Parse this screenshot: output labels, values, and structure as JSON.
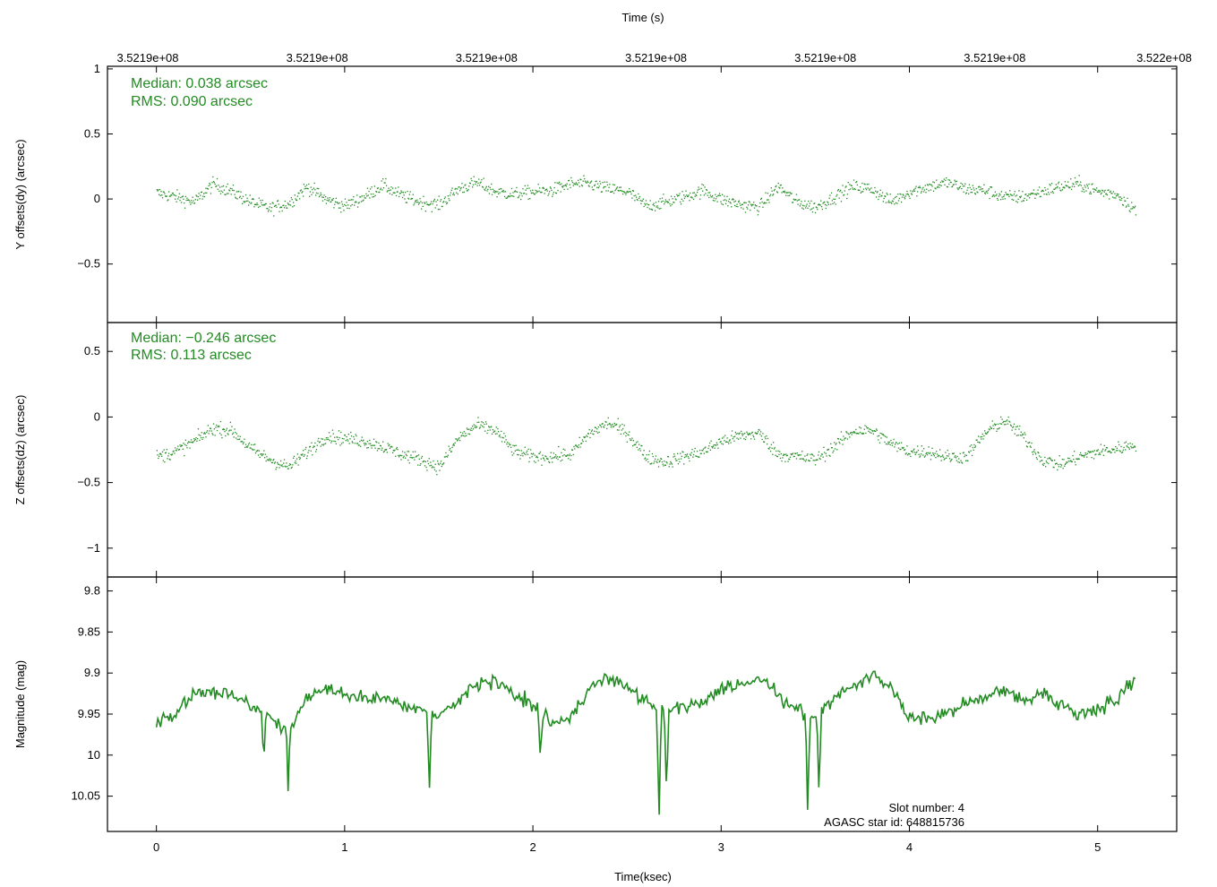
{
  "chart_data": {
    "type": "scatter",
    "accent_color": "#228b22",
    "shared_x": {
      "xlabel": "Time(ksec)",
      "xlim": [
        -0.26,
        5.42
      ],
      "ticks": [
        0,
        1,
        2,
        3,
        4,
        5
      ],
      "tick_labels": [
        "0",
        "1",
        "2",
        "3",
        "4",
        "5"
      ],
      "top_axis_title": "Time (s)",
      "top_tick_labels": [
        "3.5219e+08",
        "3.5219e+08",
        "3.5219e+08",
        "3.5219e+08",
        "3.5219e+08",
        "3.5219e+08",
        "3.522e+08"
      ]
    },
    "panels": [
      {
        "type": "scatter",
        "ylabel": "Y offsets(dy) (arcsec)",
        "ylim": [
          -0.95,
          1.02
        ],
        "yticks": [
          1,
          0.5,
          0,
          -0.5
        ],
        "ytick_labels": [
          "1",
          "0.5",
          "0",
          "−0.5"
        ],
        "annotations": [
          "Median: 0.038 arcsec",
          "RMS: 0.090 arcsec"
        ],
        "x": [
          0.0,
          0.1,
          0.2,
          0.3,
          0.4,
          0.5,
          0.6,
          0.7,
          0.8,
          0.9,
          1.0,
          1.1,
          1.2,
          1.3,
          1.4,
          1.5,
          1.6,
          1.7,
          1.8,
          1.9,
          2.0,
          2.1,
          2.2,
          2.3,
          2.4,
          2.5,
          2.6,
          2.7,
          2.8,
          2.9,
          3.0,
          3.1,
          3.2,
          3.3,
          3.4,
          3.5,
          3.6,
          3.7,
          3.8,
          3.9,
          4.0,
          4.1,
          4.2,
          4.3,
          4.4,
          4.5,
          4.6,
          4.7,
          4.8,
          4.9,
          5.0,
          5.1,
          5.2
        ],
        "y": [
          0.05,
          0.02,
          -0.02,
          0.12,
          0.06,
          -0.02,
          -0.07,
          -0.03,
          0.1,
          0.0,
          -0.05,
          0.02,
          0.11,
          0.03,
          -0.02,
          -0.04,
          0.08,
          0.13,
          0.06,
          0.04,
          0.06,
          0.07,
          0.12,
          0.12,
          0.08,
          0.06,
          -0.05,
          -0.02,
          0.02,
          0.07,
          0.0,
          -0.04,
          -0.06,
          0.1,
          -0.02,
          -0.06,
          0.02,
          0.1,
          0.08,
          -0.02,
          0.06,
          0.1,
          0.13,
          0.08,
          0.07,
          0.02,
          0.02,
          0.06,
          0.1,
          0.12,
          0.06,
          0.04,
          -0.08
        ],
        "point_count": 1400
      },
      {
        "type": "scatter",
        "ylabel": "Z offsets(dz) (arcsec)",
        "ylim": [
          -1.22,
          0.72
        ],
        "yticks": [
          0.5,
          0,
          -0.5,
          -1
        ],
        "ytick_labels": [
          "0.5",
          "0",
          "−0.5",
          "−1"
        ],
        "annotations": [
          "Median: −0.246 arcsec",
          "RMS: 0.113 arcsec"
        ],
        "x": [
          0.0,
          0.1,
          0.2,
          0.3,
          0.4,
          0.5,
          0.6,
          0.7,
          0.8,
          0.9,
          1.0,
          1.1,
          1.2,
          1.3,
          1.4,
          1.5,
          1.6,
          1.7,
          1.8,
          1.9,
          2.0,
          2.1,
          2.2,
          2.3,
          2.4,
          2.5,
          2.6,
          2.7,
          2.8,
          2.9,
          3.0,
          3.1,
          3.2,
          3.3,
          3.4,
          3.5,
          3.6,
          3.7,
          3.8,
          3.9,
          4.0,
          4.1,
          4.2,
          4.3,
          4.4,
          4.5,
          4.6,
          4.7,
          4.8,
          4.9,
          5.0,
          5.1,
          5.2
        ],
        "y": [
          -0.3,
          -0.26,
          -0.18,
          -0.08,
          -0.1,
          -0.24,
          -0.32,
          -0.38,
          -0.26,
          -0.14,
          -0.16,
          -0.18,
          -0.22,
          -0.28,
          -0.32,
          -0.38,
          -0.16,
          -0.06,
          -0.1,
          -0.26,
          -0.3,
          -0.3,
          -0.28,
          -0.12,
          -0.04,
          -0.12,
          -0.3,
          -0.34,
          -0.3,
          -0.26,
          -0.18,
          -0.14,
          -0.12,
          -0.28,
          -0.3,
          -0.32,
          -0.22,
          -0.1,
          -0.1,
          -0.2,
          -0.26,
          -0.26,
          -0.3,
          -0.3,
          -0.12,
          -0.02,
          -0.14,
          -0.32,
          -0.36,
          -0.3,
          -0.26,
          -0.24,
          -0.2
        ],
        "point_count": 1400
      },
      {
        "type": "line",
        "ylabel": "Magnitude (mag)",
        "ylim": [
          9.783,
          10.093
        ],
        "inverted": true,
        "yticks": [
          9.8,
          9.85,
          9.9,
          9.95,
          10,
          10.05
        ],
        "ytick_labels": [
          "9.8",
          "9.85",
          "9.9",
          "9.95",
          "10",
          "10.05"
        ],
        "annotations_bottom_right": [
          "Slot number: 4",
          "AGASC star id: 648815736"
        ],
        "x": [
          0.0,
          0.1,
          0.2,
          0.3,
          0.4,
          0.5,
          0.6,
          0.7,
          0.8,
          0.9,
          1.0,
          1.1,
          1.2,
          1.3,
          1.4,
          1.5,
          1.6,
          1.7,
          1.8,
          1.9,
          2.0,
          2.1,
          2.2,
          2.3,
          2.4,
          2.5,
          2.6,
          2.7,
          2.8,
          2.9,
          3.0,
          3.1,
          3.2,
          3.3,
          3.4,
          3.5,
          3.6,
          3.7,
          3.8,
          3.9,
          4.0,
          4.1,
          4.2,
          4.3,
          4.4,
          4.5,
          4.6,
          4.7,
          4.8,
          4.9,
          5.0,
          5.1,
          5.2
        ],
        "y": [
          9.96,
          9.95,
          9.925,
          9.925,
          9.925,
          9.94,
          9.955,
          9.97,
          9.93,
          9.92,
          9.925,
          9.93,
          9.93,
          9.94,
          9.945,
          9.95,
          9.935,
          9.915,
          9.91,
          9.925,
          9.94,
          9.96,
          9.955,
          9.92,
          9.905,
          9.915,
          9.935,
          9.945,
          9.94,
          9.935,
          9.92,
          9.915,
          9.905,
          9.925,
          9.945,
          9.955,
          9.93,
          9.915,
          9.905,
          9.915,
          9.955,
          9.955,
          9.95,
          9.935,
          9.93,
          9.92,
          9.935,
          9.925,
          9.94,
          9.95,
          9.945,
          9.93,
          9.905
        ],
        "dips": [
          {
            "x": 0.57,
            "y": 10.01
          },
          {
            "x": 0.7,
            "y": 10.05
          },
          {
            "x": 1.45,
            "y": 10.045
          },
          {
            "x": 2.04,
            "y": 10.005
          },
          {
            "x": 2.67,
            "y": 10.08
          },
          {
            "x": 2.71,
            "y": 10.05
          },
          {
            "x": 3.46,
            "y": 10.075
          },
          {
            "x": 3.52,
            "y": 10.05
          }
        ]
      }
    ]
  }
}
